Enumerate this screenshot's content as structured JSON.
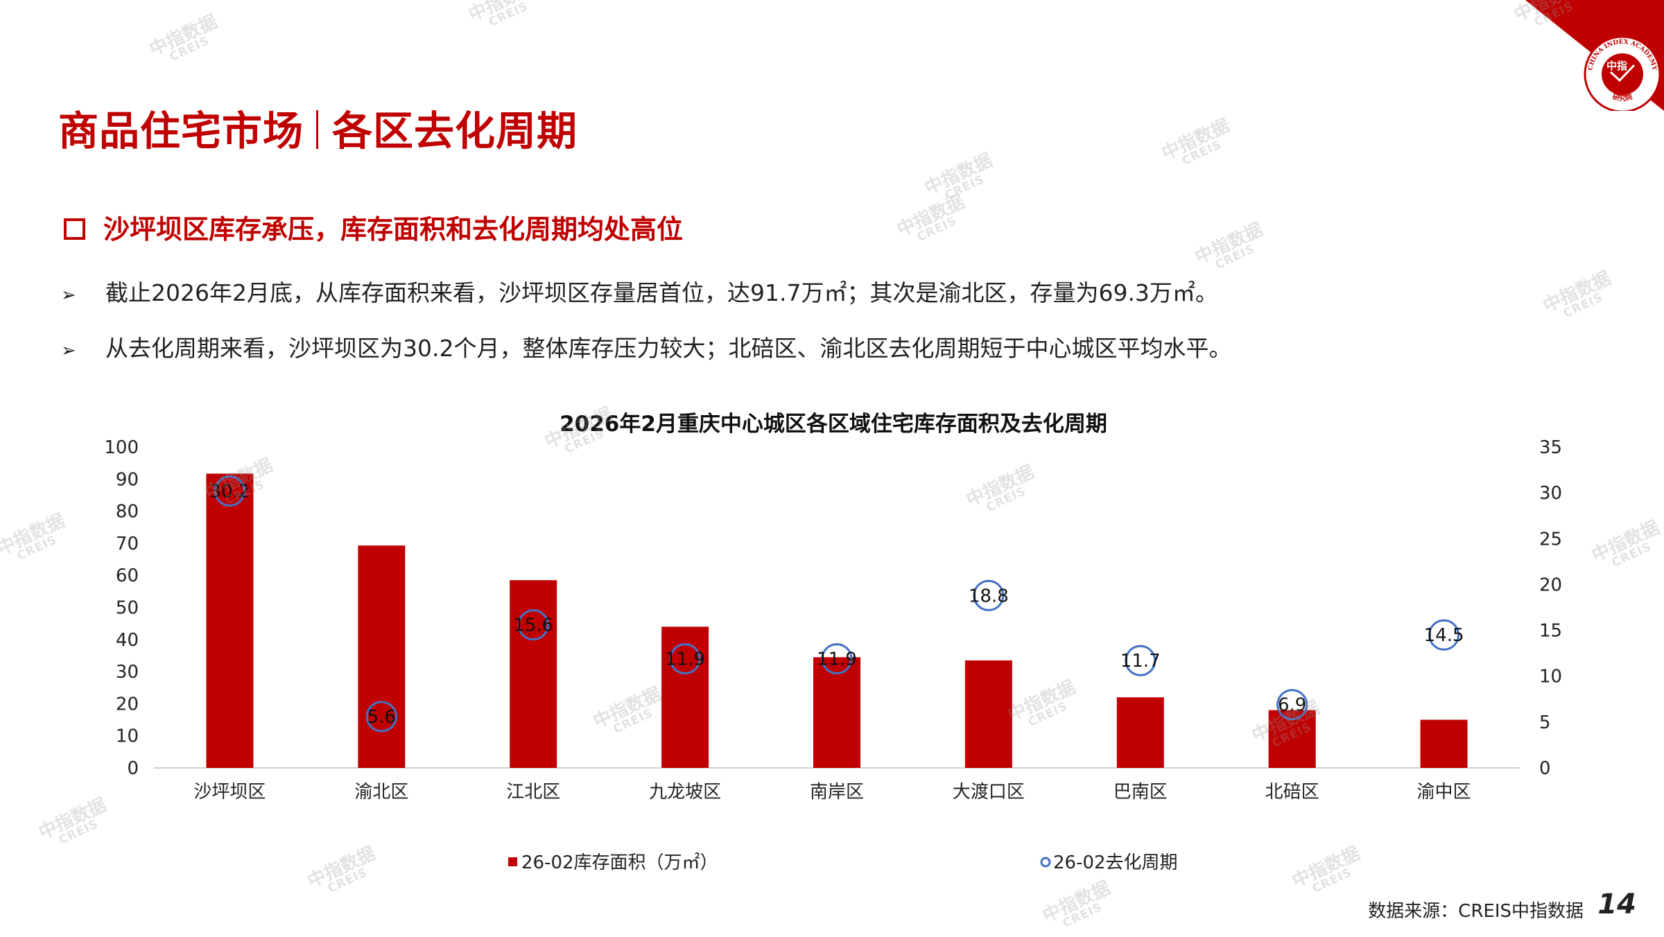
{
  "header": {
    "title_left": "商品住宅市场",
    "title_right": "各区去化周期",
    "logo_top_text": "CHINA INDEX ACADEMY",
    "logo_center_text": "中指",
    "logo_bottom_text": "研究院",
    "brand_color": "#c00000"
  },
  "subheading": "沙坪坝区库存承压，库存面积和去化周期均处高位",
  "bullets": [
    "截止2026年2月底，从库存面积来看，沙坪坝区存量居首位，达91.7万㎡；其次是渝北区，存量为69.3万㎡。",
    "从去化周期来看，沙坪坝区为30.2个月，整体库存压力较大；北碚区、渝北区去化周期短于中心城区平均水平。"
  ],
  "bullet_marker": "➢",
  "watermark": {
    "line1": "中指数据",
    "line2": "CREIS"
  },
  "footer": {
    "source": "数据来源：CREIS中指数据",
    "page_number": "14"
  },
  "chart_data": {
    "type": "bar",
    "title": "2026年2月重庆中心城区各区域住宅库存面积及去化周期",
    "categories": [
      "沙坪坝区",
      "渝北区",
      "江北区",
      "九龙坡区",
      "南岸区",
      "大渡口区",
      "巴南区",
      "北碚区",
      "渝中区"
    ],
    "series": [
      {
        "name": "26-02库存面积（万㎡）",
        "type": "bar",
        "axis": "left",
        "color": "#c00000",
        "values": [
          91.7,
          69.3,
          58.5,
          44,
          34.5,
          33.5,
          22,
          18,
          15
        ]
      },
      {
        "name": "26-02去化周期",
        "type": "scatter",
        "axis": "right",
        "color": "#4472c4",
        "values": [
          30.2,
          5.6,
          15.6,
          11.9,
          11.9,
          18.8,
          11.7,
          6.9,
          14.5
        ],
        "labels": [
          "30.2",
          "5.6",
          "15.6",
          "11.9",
          "11.9",
          "18.8",
          "11.7",
          "6.9",
          "14.5"
        ]
      }
    ],
    "ylim_left": [
      0,
      100
    ],
    "yticks_left": [
      0,
      10,
      20,
      30,
      40,
      50,
      60,
      70,
      80,
      90,
      100
    ],
    "ylim_right": [
      0,
      35
    ],
    "yticks_right": [
      0,
      5,
      10,
      15,
      20,
      25,
      30,
      35
    ],
    "grid": false,
    "legend_position": "bottom"
  }
}
